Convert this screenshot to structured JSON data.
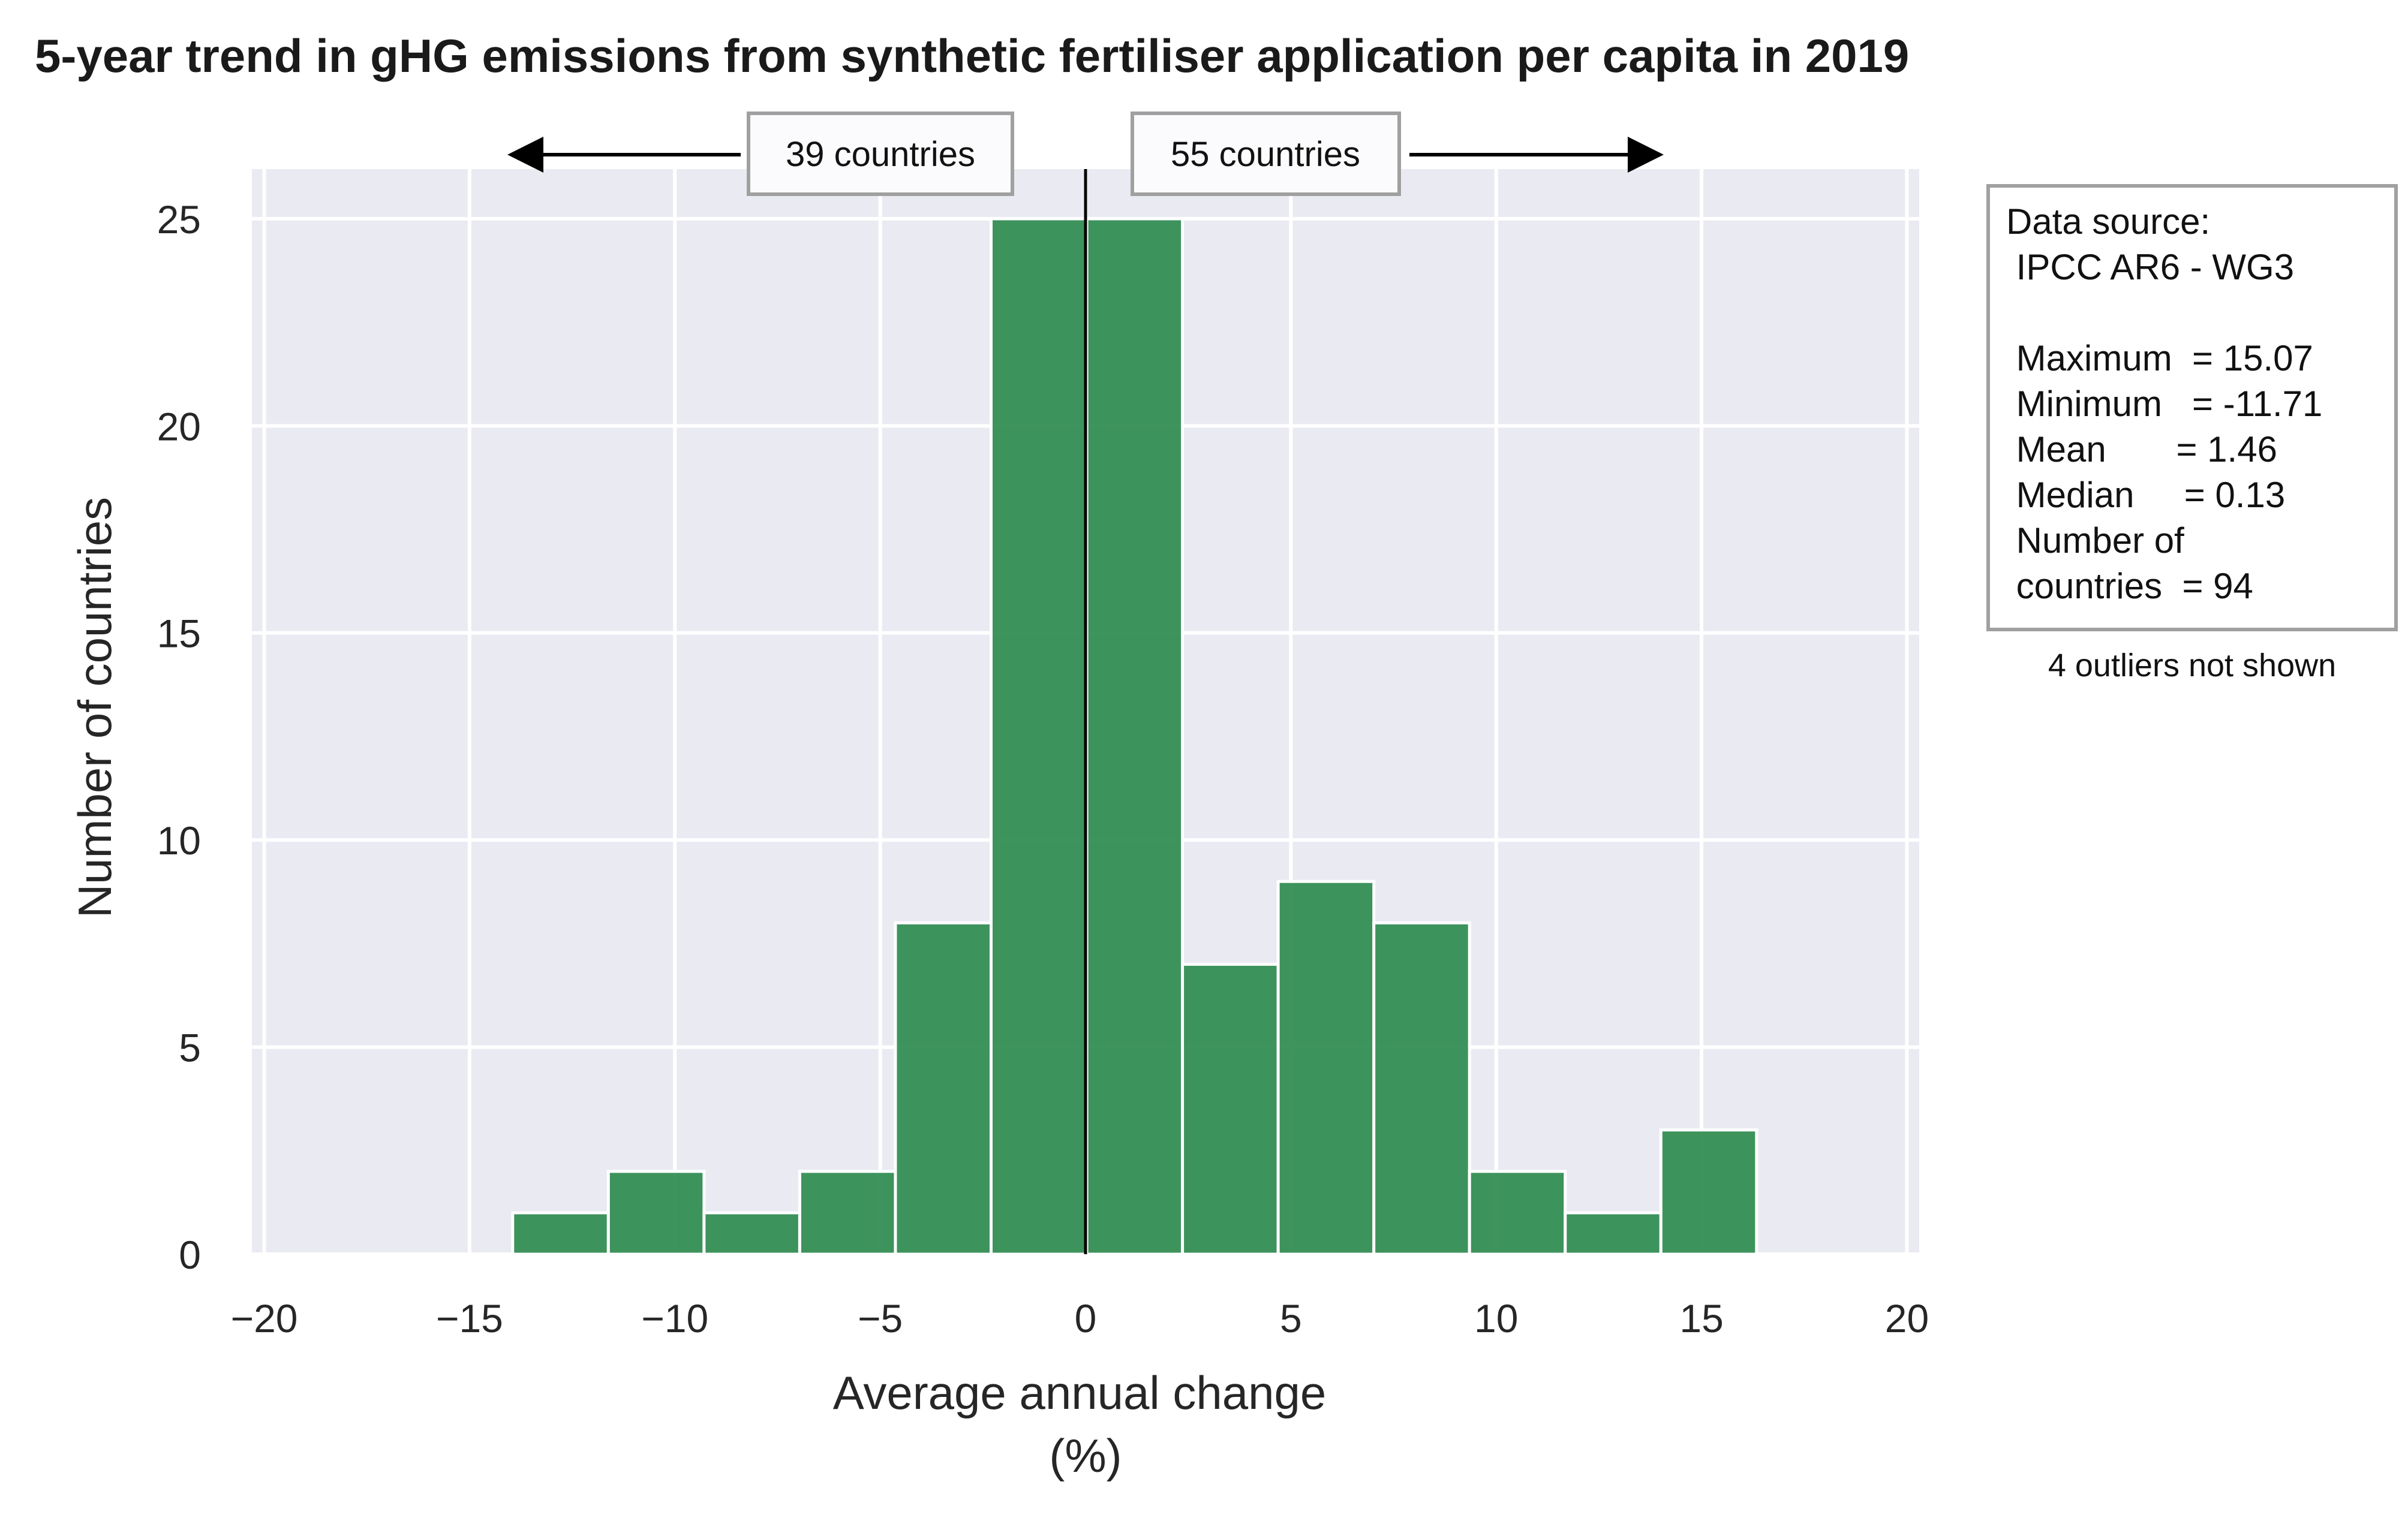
{
  "chart_data": {
    "type": "bar",
    "title": "5-year trend in gHG emissions from synthetic fertiliser application per capita in 2019",
    "xlabel_line1": "Average annual change",
    "xlabel_line2": "(%)",
    "ylabel": "Number of countries",
    "xlim": [
      -20.3,
      20.3
    ],
    "ylim": [
      0,
      26.2
    ],
    "xticks": [
      -20,
      -15,
      -10,
      -5,
      0,
      5,
      10,
      15,
      20
    ],
    "xtick_labels": [
      "−20",
      "−15",
      "−10",
      "−5",
      "0",
      "5",
      "10",
      "15",
      "20"
    ],
    "yticks": [
      0,
      5,
      10,
      15,
      20,
      25
    ],
    "ytick_labels": [
      "0",
      "5",
      "10",
      "15",
      "20",
      "25"
    ],
    "grid": true,
    "bar_color": "#2e8b4f",
    "plot_background": "#eaeaf2",
    "bins": [
      {
        "from": -13.95,
        "to": -11.62,
        "count": 1
      },
      {
        "from": -11.62,
        "to": -9.29,
        "count": 2
      },
      {
        "from": -9.29,
        "to": -6.96,
        "count": 1
      },
      {
        "from": -6.96,
        "to": -4.63,
        "count": 2
      },
      {
        "from": -4.63,
        "to": -2.3,
        "count": 8
      },
      {
        "from": -2.3,
        "to": 0.03,
        "count": 25
      },
      {
        "from": 0.03,
        "to": 2.36,
        "count": 25
      },
      {
        "from": 2.36,
        "to": 4.69,
        "count": 7
      },
      {
        "from": 4.69,
        "to": 7.02,
        "count": 9
      },
      {
        "from": 7.02,
        "to": 9.35,
        "count": 8
      },
      {
        "from": 9.35,
        "to": 11.68,
        "count": 2
      },
      {
        "from": 11.68,
        "to": 14.01,
        "count": 1
      },
      {
        "from": 14.01,
        "to": 16.34,
        "count": 3
      }
    ],
    "zero_line_x": 0,
    "annotations": {
      "left_count": "39 countries",
      "right_count": "55 countries"
    }
  },
  "stats_box": {
    "lines": [
      "Data source:",
      " IPCC AR6 - WG3",
      "",
      " Maximum  = 15.07",
      " Minimum   = -11.71",
      " Mean       = 1.46",
      " Median     = 0.13",
      " Number of",
      " countries  = 94"
    ],
    "outlier_note": "4 outliers not shown"
  }
}
